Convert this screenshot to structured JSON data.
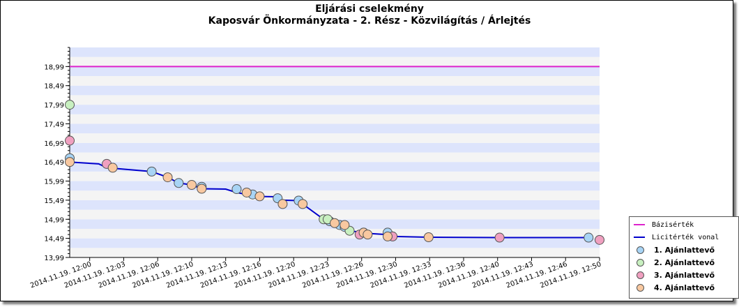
{
  "title": "Eljárási cselekmény",
  "subtitle": "Kaposvár Önkormányzata - 2. Rész - Közvilágítás / Árlejtés",
  "chart_data": {
    "type": "line",
    "ylim": [
      13.99,
      19.49
    ],
    "yticks": [
      "13,99",
      "14,49",
      "14,99",
      "15,49",
      "15,99",
      "16,49",
      "16,99",
      "17,49",
      "17,99",
      "18,49",
      "18,99"
    ],
    "xlim": [
      -2.0,
      51.0
    ],
    "xtick_values": [
      0,
      3.4,
      6.8,
      10.2,
      13.6,
      17,
      20.4,
      23.8,
      27.2,
      30.6,
      34,
      37.4,
      40.8,
      44.2,
      47.6,
      51
    ],
    "xtick_labels": [
      "2014.11.19. 12:00",
      "2014.11.19. 12:03",
      "2014.11.19. 12:06",
      "2014.11.19. 12:10",
      "2014.11.19. 12:13",
      "2014.11.19. 12:16",
      "2014.11.19. 12:20",
      "2014.11.19. 12:23",
      "2014.11.19. 12:26",
      "2014.11.19. 12:30",
      "2014.11.19. 12:33",
      "2014.11.19. 12:36",
      "2014.11.19. 12:40",
      "2014.11.19. 12:43",
      "2014.11.19. 12:46",
      "2014.11.19. 12:50"
    ],
    "grid": true,
    "legend_position": "bottom-right",
    "series": [
      {
        "name": "Bázisérték",
        "kind": "line",
        "color": "#dd22cc",
        "x": [
          -2.0,
          51.0
        ],
        "y": [
          18.99,
          18.99
        ]
      },
      {
        "name": "Licitérték vonal",
        "kind": "line",
        "color": "#0000cc",
        "x": [
          -2.0,
          0.9,
          1.7,
          6.2,
          7.8,
          8.9,
          10.2,
          10.7,
          11.2,
          13.6,
          14.7,
          15.7,
          16.3,
          18.8,
          19.3,
          20.9,
          21.3,
          23.4,
          24.0,
          24.5,
          25.0,
          25.5,
          26.0,
          27.4,
          27.8,
          29.8,
          30.3,
          33.9,
          41.0,
          49.9
        ],
        "y": [
          16.49,
          16.44,
          16.34,
          16.24,
          16.09,
          15.94,
          15.89,
          15.84,
          15.79,
          15.78,
          15.69,
          15.64,
          15.59,
          15.58,
          15.49,
          15.48,
          15.39,
          14.99,
          14.96,
          14.89,
          14.84,
          14.79,
          14.69,
          14.64,
          14.62,
          14.59,
          14.54,
          14.52,
          14.51,
          14.51
        ]
      },
      {
        "name": "1. Ajánlattevő",
        "kind": "points",
        "color": "#a8d4f5",
        "x": [
          -2.0,
          6.2,
          8.9,
          11.2,
          14.7,
          16.3,
          18.8,
          20.9,
          24.0,
          25.0,
          25.5,
          29.8,
          49.9
        ],
        "y": [
          16.59,
          16.24,
          15.94,
          15.84,
          15.78,
          15.64,
          15.54,
          15.48,
          14.94,
          14.84,
          14.79,
          14.64,
          14.51
        ]
      },
      {
        "name": "2. Ajánlattevő",
        "kind": "points",
        "color": "#c8f0c0",
        "x": [
          -2.0,
          23.4,
          23.8,
          26.0,
          27.4
        ],
        "y": [
          17.99,
          14.99,
          14.99,
          14.69,
          14.64
        ]
      },
      {
        "name": "3. Ajánlattevő",
        "kind": "points",
        "color": "#f0a0c0",
        "x": [
          -2.0,
          1.7,
          27.0,
          30.3,
          41.0,
          51.0
        ],
        "y": [
          17.05,
          16.44,
          14.59,
          14.54,
          14.51,
          14.45
        ]
      },
      {
        "name": "4. Ajánlattevő",
        "kind": "points",
        "color": "#f8c8a0",
        "x": [
          -2.0,
          2.3,
          7.8,
          10.2,
          11.2,
          15.7,
          17.0,
          19.3,
          21.3,
          24.5,
          25.5,
          27.4,
          27.8,
          29.8,
          33.9
        ],
        "y": [
          16.49,
          16.34,
          16.09,
          15.89,
          15.79,
          15.69,
          15.59,
          15.39,
          15.39,
          14.89,
          14.84,
          14.64,
          14.59,
          14.54,
          14.52
        ]
      }
    ]
  }
}
